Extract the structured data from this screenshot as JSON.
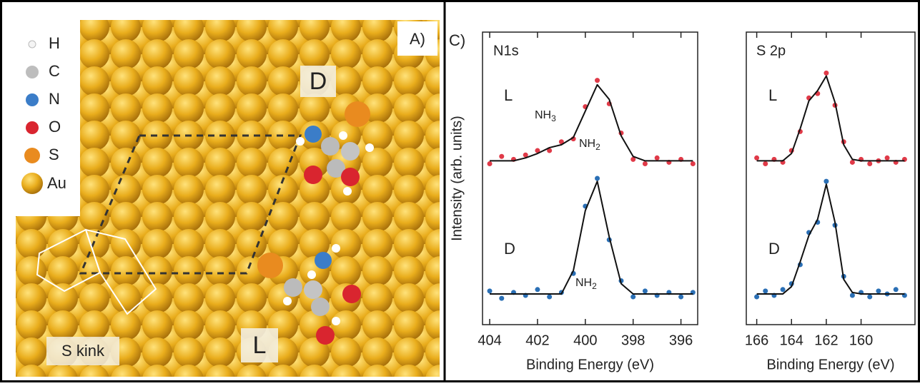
{
  "panel_a": {
    "label": "A)",
    "legend": [
      "H",
      "C",
      "N",
      "O",
      "S",
      "Au"
    ],
    "labels": [
      "D",
      "L",
      "S kink"
    ]
  },
  "panel_c": {
    "label": "C)"
  },
  "chart_data": [
    {
      "type": "scatter",
      "title": "N1s",
      "xlabel": "Binding Energy (eV)",
      "ylabel": "Intensity (arb. units)",
      "xlim": [
        404.3,
        395.3
      ],
      "xticks": [
        404,
        402,
        400,
        398,
        396
      ],
      "ylim": [
        0,
        2
      ],
      "fit_color": "#111111",
      "x": [
        404,
        403.5,
        403,
        402.5,
        402,
        401.5,
        401,
        400.5,
        400,
        399.5,
        399,
        398.5,
        398,
        397.5,
        397,
        396.5,
        396,
        395.5
      ],
      "series": [
        {
          "name": "L",
          "color": "#e03a48",
          "values": [
            1.1,
            1.15,
            1.13,
            1.16,
            1.19,
            1.19,
            1.25,
            1.27,
            1.49,
            1.67,
            1.51,
            1.31,
            1.13,
            1.1,
            1.14,
            1.11,
            1.13,
            1.1
          ],
          "fit": [
            1.12,
            1.12,
            1.12,
            1.14,
            1.17,
            1.21,
            1.23,
            1.28,
            1.46,
            1.64,
            1.54,
            1.29,
            1.15,
            1.12,
            1.12,
            1.12,
            1.12,
            1.12
          ]
        },
        {
          "name": "D",
          "color": "#2a6fb5",
          "values": [
            0.23,
            0.18,
            0.22,
            0.2,
            0.24,
            0.19,
            0.22,
            0.35,
            0.81,
            1.0,
            0.58,
            0.3,
            0.19,
            0.23,
            0.2,
            0.22,
            0.19,
            0.22
          ],
          "fit": [
            0.21,
            0.21,
            0.21,
            0.21,
            0.21,
            0.21,
            0.21,
            0.37,
            0.78,
            0.98,
            0.6,
            0.28,
            0.21,
            0.21,
            0.21,
            0.21,
            0.21,
            0.21
          ]
        }
      ],
      "annotations": [
        {
          "text": "NH",
          "sub": "3"
        },
        {
          "text": "NH",
          "sub": "2"
        },
        {
          "text": "NH",
          "sub": "2"
        }
      ]
    },
    {
      "type": "scatter",
      "title": "S 2p",
      "xlabel": "Binding Energy (eV)",
      "xlim": [
        166.6,
        156.9
      ],
      "xticks": [
        166,
        164,
        162,
        160
      ],
      "ylim": [
        0,
        2
      ],
      "fit_color": "#111111",
      "x": [
        166,
        165.5,
        165,
        164.5,
        164,
        163.5,
        163,
        162.5,
        162,
        161.5,
        161,
        160.5,
        160,
        159.5,
        159,
        158.5,
        158,
        157.5
      ],
      "series": [
        {
          "name": "L",
          "color": "#e03a48",
          "values": [
            1.14,
            1.1,
            1.13,
            1.11,
            1.19,
            1.32,
            1.55,
            1.58,
            1.72,
            1.5,
            1.25,
            1.11,
            1.13,
            1.1,
            1.12,
            1.14,
            1.11,
            1.13
          ],
          "fit": [
            1.12,
            1.12,
            1.12,
            1.12,
            1.17,
            1.34,
            1.53,
            1.6,
            1.7,
            1.52,
            1.23,
            1.13,
            1.12,
            1.12,
            1.12,
            1.12,
            1.12,
            1.12
          ]
        },
        {
          "name": "D",
          "color": "#2a6fb5",
          "values": [
            0.19,
            0.23,
            0.2,
            0.24,
            0.28,
            0.41,
            0.63,
            0.7,
            0.98,
            0.68,
            0.33,
            0.2,
            0.22,
            0.19,
            0.23,
            0.21,
            0.24,
            0.2
          ],
          "fit": [
            0.21,
            0.21,
            0.21,
            0.21,
            0.26,
            0.43,
            0.61,
            0.72,
            0.96,
            0.7,
            0.31,
            0.22,
            0.21,
            0.21,
            0.21,
            0.21,
            0.21,
            0.21
          ]
        }
      ]
    }
  ]
}
